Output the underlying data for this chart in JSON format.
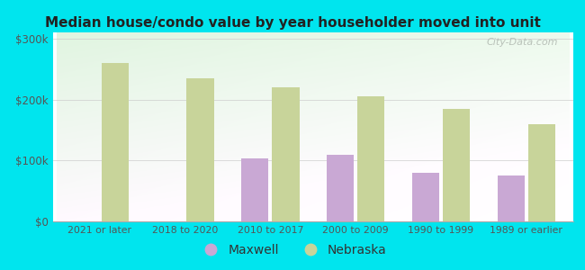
{
  "title": "Median house/condo value by year householder moved into unit",
  "categories": [
    "2021 or later",
    "2018 to 2020",
    "2010 to 2017",
    "2000 to 2009",
    "1990 to 1999",
    "1989 or earlier"
  ],
  "maxwell_values": [
    null,
    null,
    103000,
    109000,
    80000,
    75000
  ],
  "nebraska_values": [
    260000,
    235000,
    220000,
    205000,
    185000,
    160000
  ],
  "maxwell_color": "#c9a8d4",
  "nebraska_color": "#c8d49a",
  "bg_top_color": "#e8f5e9",
  "bg_bottom_color": "#f5fff5",
  "outer_background": "#00e5ee",
  "ylim": [
    0,
    310000
  ],
  "yticks": [
    0,
    100000,
    200000,
    300000
  ],
  "ytick_labels": [
    "$0",
    "$100k",
    "$200k",
    "$300k"
  ],
  "bar_width": 0.32,
  "legend_maxwell": "Maxwell",
  "legend_nebraska": "Nebraska",
  "watermark": "City-Data.com"
}
